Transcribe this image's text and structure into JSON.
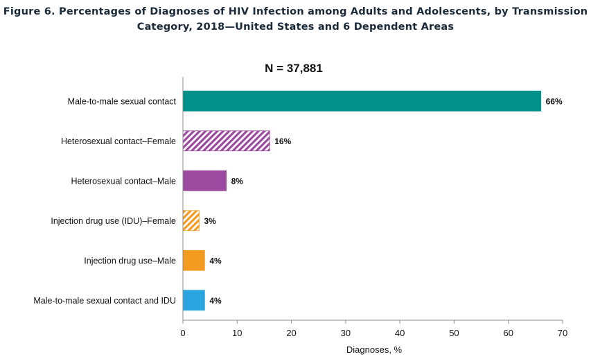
{
  "figure": {
    "title_line1": "Figure 6. Percentages of Diagnoses of HIV Infection among Adults and Adolescents, by Transmission",
    "title_line2": "Category, 2018—United States and 6 Dependent Areas"
  },
  "chart_data": {
    "type": "bar",
    "orientation": "horizontal",
    "annotation": "N = 37,881",
    "categories": [
      "Male-to-male sexual contact",
      "Heterosexual contact–Female",
      "Heterosexual contact–Male",
      "Injection drug use (IDU)–Female",
      "Injection drug use–Male",
      "Male-to-male sexual contact and IDU"
    ],
    "values": [
      66,
      16,
      8,
      3,
      4,
      4
    ],
    "value_labels": [
      "66%",
      "16%",
      "8%",
      "3%",
      "4%",
      "4%"
    ],
    "bar_colors": [
      "#00918b",
      "#9b4a9f",
      "#9b4a9f",
      "#f39a21",
      "#f39a21",
      "#2aa5df"
    ],
    "bar_patterns": [
      "solid",
      "hatched",
      "solid",
      "hatched",
      "solid",
      "solid"
    ],
    "xlabel": "Diagnoses, %",
    "ylabel": "",
    "xlim": [
      0,
      70
    ],
    "xticks": [
      0,
      10,
      20,
      30,
      40,
      50,
      60,
      70
    ],
    "grid": false
  }
}
